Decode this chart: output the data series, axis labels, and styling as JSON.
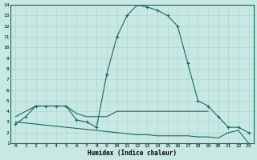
{
  "xlabel": "Humidex (Indice chaleur)",
  "xlim": [
    -0.5,
    23.5
  ],
  "ylim": [
    1,
    14
  ],
  "xticks": [
    0,
    1,
    2,
    3,
    4,
    5,
    6,
    7,
    8,
    9,
    10,
    11,
    12,
    13,
    14,
    15,
    16,
    17,
    18,
    19,
    20,
    21,
    22,
    23
  ],
  "yticks": [
    1,
    2,
    3,
    4,
    5,
    6,
    7,
    8,
    9,
    10,
    11,
    12,
    13,
    14
  ],
  "bg_color": "#c8e8e4",
  "line_color": "#1a6666",
  "grid_color": "#b0d4d0",
  "series1_x": [
    0,
    1,
    2,
    3,
    4,
    5,
    6,
    7,
    8,
    9,
    10,
    11,
    12,
    13,
    14,
    15,
    16,
    17,
    18,
    19,
    20,
    21,
    22,
    23
  ],
  "series1_y": [
    2.8,
    3.5,
    4.5,
    4.5,
    4.5,
    4.5,
    3.2,
    3.0,
    2.5,
    7.5,
    11.0,
    13.0,
    14.0,
    13.8,
    13.5,
    13.0,
    12.0,
    8.5,
    5.0,
    4.5,
    3.5,
    2.5,
    2.5,
    2.0
  ],
  "series2_x": [
    0,
    1,
    2,
    3,
    4,
    5,
    6,
    7,
    8,
    9,
    10,
    11,
    12,
    13,
    14,
    15,
    16,
    17,
    18,
    19
  ],
  "series2_y": [
    3.5,
    4.0,
    4.5,
    4.5,
    4.5,
    4.5,
    3.8,
    3.5,
    3.5,
    3.5,
    4.0,
    4.0,
    4.0,
    4.0,
    4.0,
    4.0,
    4.0,
    4.0,
    4.0,
    4.0
  ],
  "series3_x": [
    0,
    1,
    2,
    3,
    4,
    5,
    6,
    7,
    8,
    9,
    10,
    11,
    12,
    13,
    14,
    15,
    16,
    17,
    18,
    19,
    20,
    21,
    22,
    23
  ],
  "series3_y": [
    3.0,
    2.9,
    2.8,
    2.7,
    2.6,
    2.5,
    2.4,
    2.3,
    2.2,
    2.1,
    2.0,
    1.9,
    1.8,
    1.8,
    1.7,
    1.7,
    1.7,
    1.7,
    1.6,
    1.6,
    1.5,
    2.0,
    2.2,
    1.0
  ]
}
